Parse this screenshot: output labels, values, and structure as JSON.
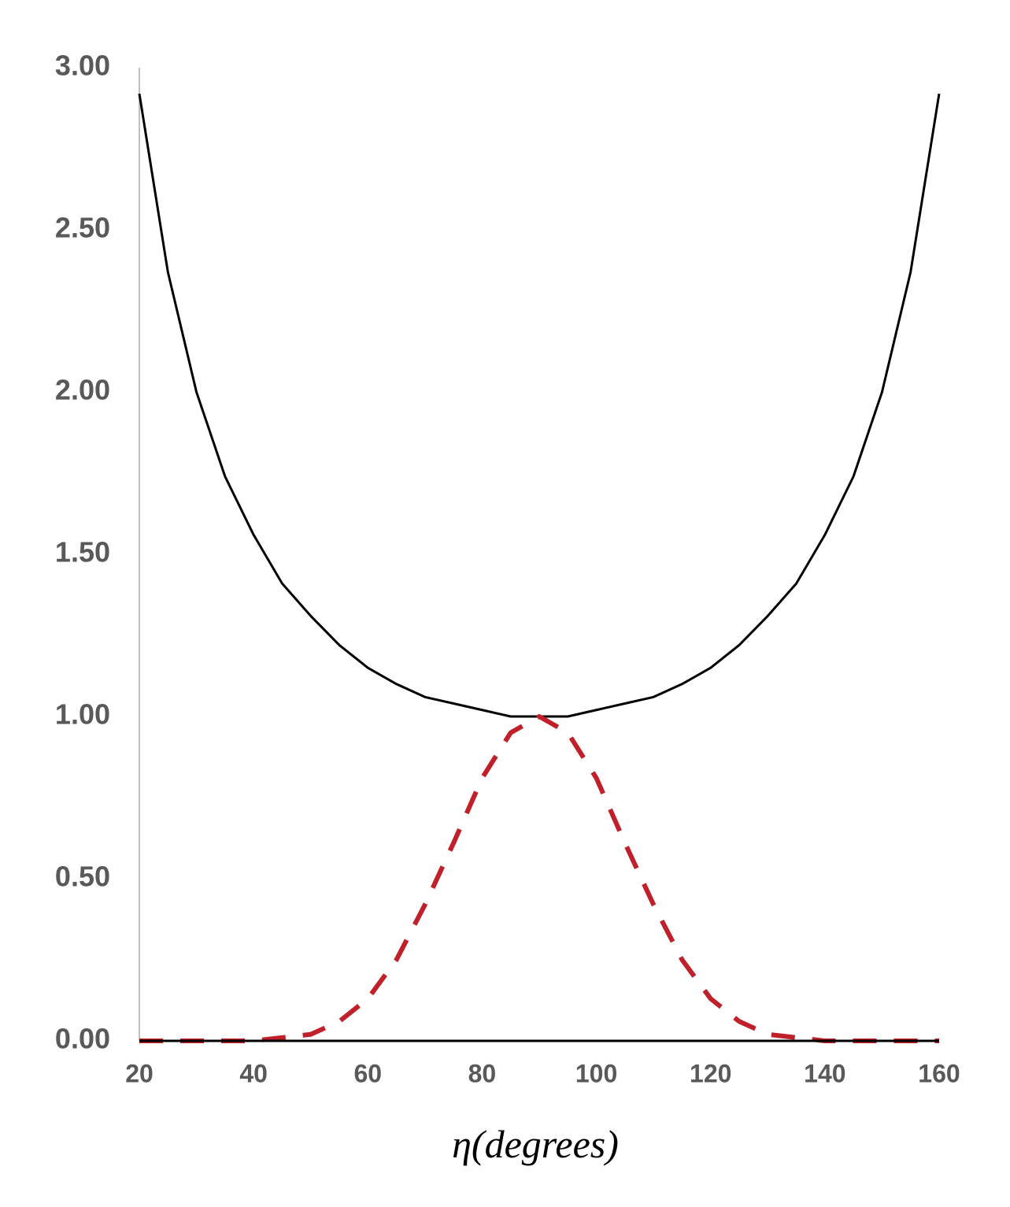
{
  "chart_data": {
    "type": "line",
    "x_label": "η(degrees)",
    "x": [
      20,
      25,
      30,
      35,
      40,
      45,
      50,
      55,
      60,
      65,
      70,
      75,
      80,
      85,
      90,
      95,
      100,
      105,
      110,
      115,
      120,
      125,
      130,
      135,
      140,
      145,
      150,
      155,
      160
    ],
    "series": [
      {
        "color": "#000000",
        "style": "solid",
        "values": [
          2.92,
          2.37,
          2.0,
          1.74,
          1.56,
          1.41,
          1.31,
          1.22,
          1.15,
          1.1,
          1.06,
          1.04,
          1.02,
          1.0,
          1.0,
          1.0,
          1.02,
          1.04,
          1.06,
          1.1,
          1.15,
          1.22,
          1.31,
          1.41,
          1.56,
          1.74,
          2.0,
          2.37,
          2.92
        ]
      },
      {
        "color": "#c0202a",
        "style": "dashed",
        "values": [
          0.0,
          0.0,
          0.0,
          0.0,
          0.0,
          0.01,
          0.02,
          0.06,
          0.13,
          0.25,
          0.42,
          0.61,
          0.81,
          0.95,
          1.0,
          0.95,
          0.81,
          0.61,
          0.42,
          0.25,
          0.13,
          0.06,
          0.02,
          0.01,
          0.0,
          0.0,
          0.0,
          0.0,
          0.0
        ]
      }
    ],
    "xlim": [
      20,
      160
    ],
    "xticks": [
      20,
      40,
      60,
      80,
      100,
      120,
      140,
      160
    ],
    "ylim": [
      0,
      3
    ],
    "yticks": [
      {
        "value": 0,
        "label": "0.00"
      },
      {
        "value": 0.5,
        "label": "0.50"
      },
      {
        "value": 1,
        "label": "1.00"
      },
      {
        "value": 1.5,
        "label": "1.50"
      },
      {
        "value": 2,
        "label": "2.00"
      },
      {
        "value": 2.5,
        "label": "2.50"
      },
      {
        "value": 3,
        "label": "3.00"
      }
    ],
    "grid": false
  }
}
